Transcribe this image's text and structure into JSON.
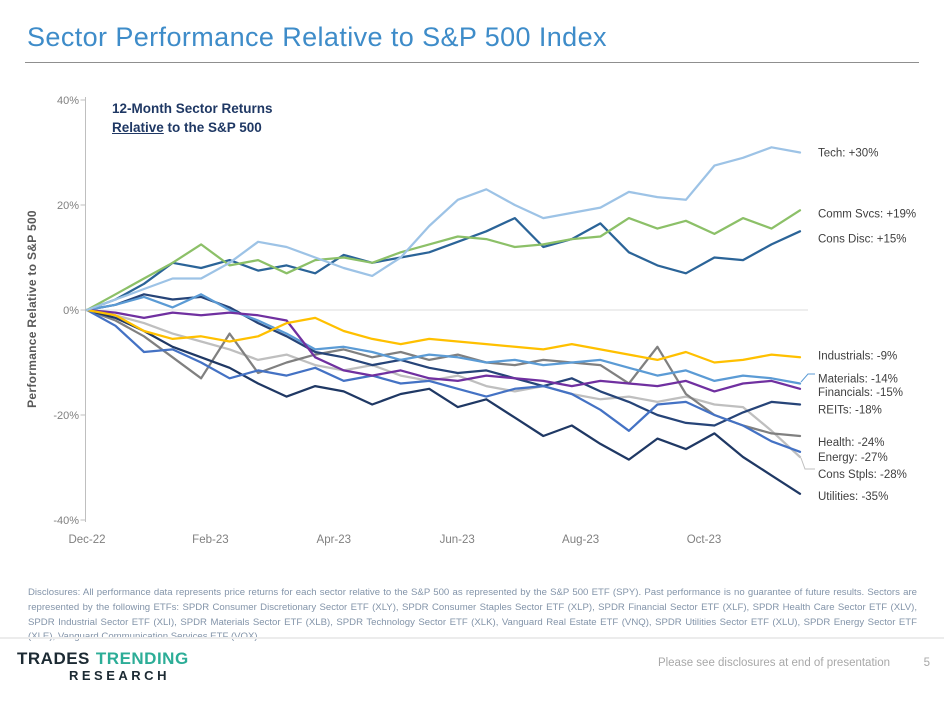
{
  "page": {
    "title": "Sector Performance Relative to S&P 500 Index"
  },
  "disclosures": {
    "text": "Disclosures: All performance data represents price returns for each sector relative to the S&P 500 as represented by the S&P 500 ETF (SPY). Past performance is no guarantee of future results. Sectors are represented by the following ETFs: SPDR Consumer Discretionary Sector ETF (XLY), SPDR Consumer Staples Sector ETF (XLP), SPDR Financial Sector ETF (XLF), SPDR Health Care Sector ETF (XLV), SPDR Industrial Sector ETF (XLI), SPDR Materials Sector ETF (XLB), SPDR Technology Sector ETF (XLK), Vanguard Real Estate ETF (VNQ), SPDR Utilities Sector ETF (XLU), SPDR Energy Sector ETF (XLE), Vanguard Communication Services ETF (VOX)."
  },
  "logo": {
    "trades": "TRADES",
    "trending": "TRENDING",
    "research": "RESEARCH"
  },
  "footer": {
    "note": "Please see disclosures at end of presentation",
    "page_number": "5"
  },
  "chart_data": {
    "type": "line",
    "annotation": {
      "line1": "12-Month Sector Returns",
      "line2_underlined": "Relative",
      "line2_rest": " to the S&P 500"
    },
    "ylabel": "Performance Relative to S&P 500",
    "x_description": "26 points spanning Dec-22 through early Dec-23 (approx. biweekly)",
    "x_ticks": [
      {
        "label": "Dec-22",
        "month": 0
      },
      {
        "label": "Feb-23",
        "month": 2
      },
      {
        "label": "Apr-23",
        "month": 4
      },
      {
        "label": "Jun-23",
        "month": 6
      },
      {
        "label": "Aug-23",
        "month": 8
      },
      {
        "label": "Oct-23",
        "month": 10
      }
    ],
    "y_ticks": [
      {
        "label": "40%",
        "value": 40
      },
      {
        "label": "20%",
        "value": 20
      },
      {
        "label": "0%",
        "value": 0
      },
      {
        "label": "-20%",
        "value": -20
      },
      {
        "label": "-40%",
        "value": -40
      }
    ],
    "ylim": [
      -40,
      40
    ],
    "grid": "zero-line-only",
    "legend_position": "right-edge-labels",
    "series": [
      {
        "name": "Tech",
        "label": "Tech: +30%",
        "end_value": 30,
        "color": "#9DC3E6",
        "values": [
          0,
          2,
          4,
          6,
          6,
          9,
          13,
          12,
          10,
          8,
          6.5,
          10,
          16,
          21,
          23,
          20,
          17.5,
          18.5,
          19.5,
          22.5,
          21.5,
          21,
          27.5,
          29,
          31,
          30
        ]
      },
      {
        "name": "Comm Svcs",
        "label": "Comm Svcs: +19%",
        "end_value": 19,
        "color": "#8CC068",
        "values": [
          0,
          3,
          6,
          9,
          12.5,
          8.5,
          9.5,
          7,
          9.5,
          10,
          9,
          11,
          12.5,
          14,
          13.5,
          12,
          12.5,
          13.5,
          14,
          17.5,
          15.5,
          17,
          14.5,
          17.5,
          15.5,
          19
        ]
      },
      {
        "name": "Cons Disc",
        "label": "Cons Disc: +15%",
        "end_value": 15,
        "color": "#2B6498",
        "values": [
          0,
          2,
          5,
          9,
          8,
          9.5,
          7.5,
          8.5,
          7,
          10.5,
          9,
          10,
          11,
          13,
          15,
          17.5,
          12,
          13.5,
          16.5,
          11,
          8.5,
          7,
          10,
          9.5,
          12.5,
          15
        ]
      },
      {
        "name": "Industrials",
        "label": "Industrials: -9%",
        "end_value": -9,
        "color": "#FFC000",
        "values": [
          0,
          -1,
          -4,
          -5.5,
          -5,
          -6,
          -5,
          -2.5,
          -1.5,
          -4,
          -5.5,
          -6.5,
          -5.5,
          -6,
          -6.5,
          -7,
          -7.5,
          -6.5,
          -7.5,
          -8.5,
          -9.5,
          -8,
          -10,
          -9.5,
          -8.5,
          -9
        ]
      },
      {
        "name": "Materials",
        "label": "Materials: -14%",
        "end_value": -14,
        "color": "#5B9BD5",
        "values": [
          0,
          1,
          2.5,
          0.5,
          3,
          0,
          -2,
          -4.5,
          -7.5,
          -7,
          -8,
          -9.5,
          -8.5,
          -9,
          -10,
          -9.5,
          -10.5,
          -10,
          -9.5,
          -11,
          -12.5,
          -11.5,
          -13.5,
          -12.5,
          -13,
          -14
        ]
      },
      {
        "name": "Financials",
        "label": "Financials: -15%",
        "end_value": -15,
        "color": "#7030A0",
        "values": [
          0,
          -0.5,
          -1.5,
          -0.5,
          -1,
          -0.5,
          -1,
          -2,
          -9,
          -11.5,
          -12.5,
          -11.5,
          -13,
          -13.5,
          -12.5,
          -13,
          -13.5,
          -14.5,
          -13.5,
          -14,
          -14.5,
          -13.5,
          -15.5,
          -14,
          -13.5,
          -15
        ]
      },
      {
        "name": "REITs",
        "label": "REITs: -18%",
        "end_value": -18,
        "color": "#264478",
        "values": [
          0,
          1,
          3,
          2,
          2.5,
          0.5,
          -2.5,
          -5,
          -8,
          -9,
          -10.5,
          -9.5,
          -11,
          -12,
          -11.5,
          -13,
          -14.5,
          -13,
          -15.5,
          -17.5,
          -20,
          -21.5,
          -22,
          -19.5,
          -17.5,
          -18
        ]
      },
      {
        "name": "Health",
        "label": "Health: -24%",
        "end_value": -24,
        "color": "#808080",
        "values": [
          0,
          -2,
          -5,
          -9,
          -13,
          -4.5,
          -12,
          -10,
          -8.5,
          -7.5,
          -9,
          -8,
          -9.5,
          -8.5,
          -10,
          -10.5,
          -9.5,
          -10,
          -10.5,
          -14,
          -7,
          -16,
          -20,
          -22,
          -23.5,
          -24
        ]
      },
      {
        "name": "Energy",
        "label": "Energy: -27%",
        "end_value": -27,
        "color": "#4472C4",
        "values": [
          0,
          -3,
          -8,
          -7.5,
          -10,
          -13,
          -11.5,
          -12.5,
          -11,
          -13.5,
          -12.5,
          -14,
          -13.5,
          -15,
          -16.5,
          -15,
          -14.5,
          -16,
          -19,
          -23,
          -18,
          -17.5,
          -20,
          -22,
          -25,
          -27
        ]
      },
      {
        "name": "Cons Stpls",
        "label": "Cons Stpls: -28%",
        "end_value": -28,
        "color": "#BFBFBF",
        "values": [
          0,
          -1,
          -2.5,
          -4.5,
          -6,
          -7.5,
          -9.5,
          -8.5,
          -10.5,
          -11.5,
          -10.5,
          -12.5,
          -13.5,
          -12.5,
          -14.5,
          -15.5,
          -14.5,
          -16,
          -17,
          -16.5,
          -17.5,
          -16.5,
          -18,
          -18.5,
          -23,
          -28
        ]
      },
      {
        "name": "Utilities",
        "label": "Utilities: -35%",
        "end_value": -35,
        "color": "#1F3864",
        "values": [
          0,
          -1.5,
          -4,
          -7,
          -9,
          -11,
          -14,
          -16.5,
          -14.5,
          -15.5,
          -18,
          -16,
          -15,
          -18.5,
          -17,
          -20.5,
          -24,
          -22,
          -25.5,
          -28.5,
          -24.5,
          -26.5,
          -23.5,
          -28,
          -31.5,
          -35
        ]
      }
    ],
    "colors": {
      "axis": "#BFBFBF",
      "zero_gridline": "#DCDCDC",
      "tick_label": "#808080",
      "series_label": "#404040"
    }
  }
}
